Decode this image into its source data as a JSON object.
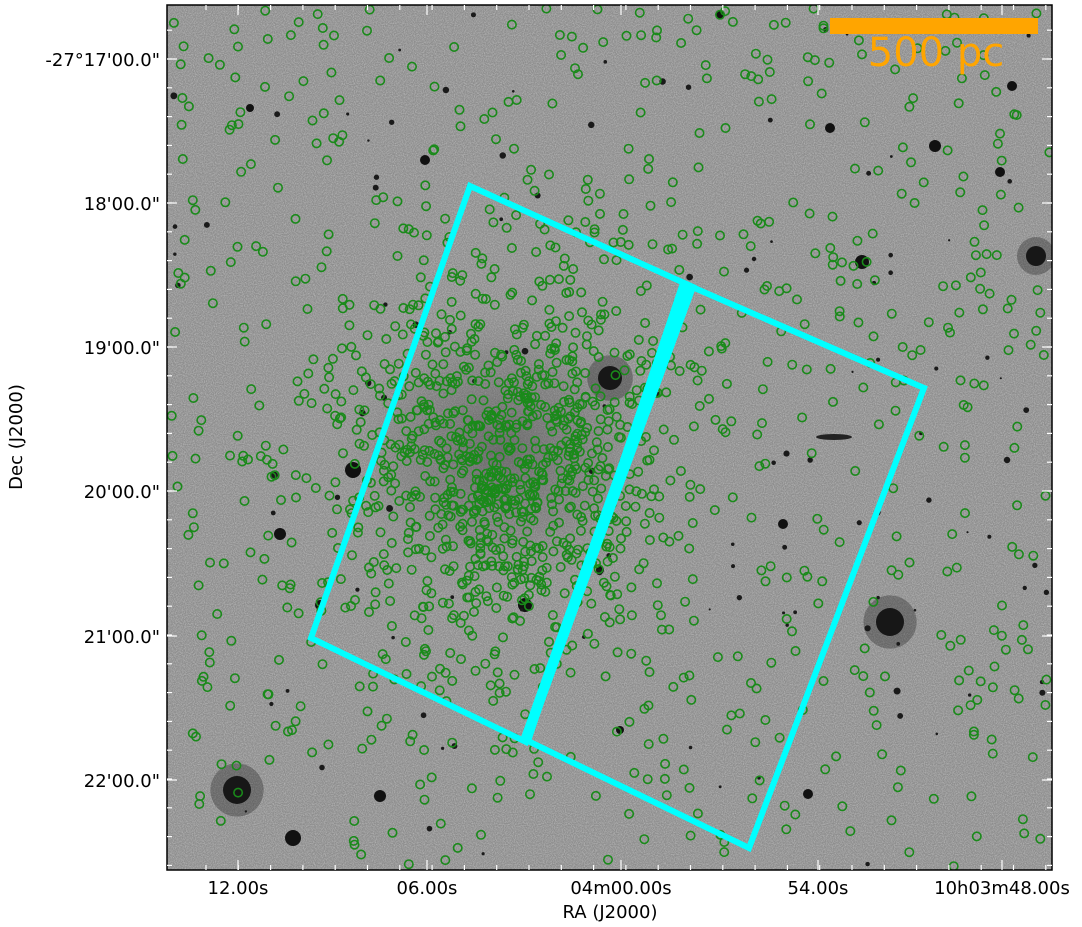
{
  "figure": {
    "xlabel": "RA (J2000)",
    "ylabel": "Dec (J2000)",
    "x_ticks": [
      "12.00s",
      "06.00s",
      "04m00.00s",
      "54.00s",
      "10h03m48.00s"
    ],
    "y_ticks": [
      "-27°17'00.0\"",
      "18'00.0\"",
      "19'00.0\"",
      "20'00.0\"",
      "21'00.0\"",
      "22'00.0\""
    ],
    "scale_bar": {
      "label": "500 pc",
      "color": "#ffa500"
    },
    "footprint_color": "#00ffff",
    "marker_color": "#1a8a1a",
    "background_color": "#8d8d8d"
  }
}
